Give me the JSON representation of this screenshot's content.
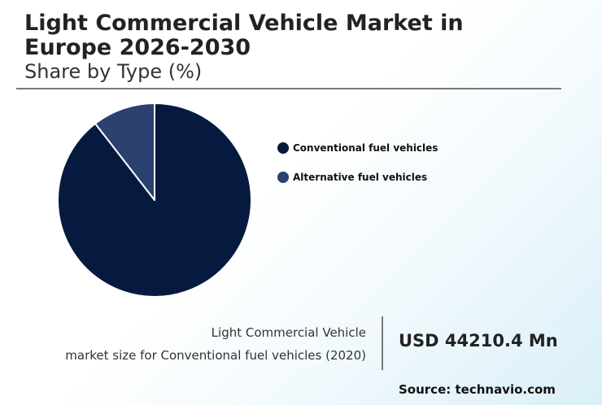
{
  "header": {
    "title_line1": "Light Commercial Vehicle Market in",
    "title_line2": "Europe 2026-2030",
    "subtitle": "Share by Type (%)"
  },
  "chart_data": {
    "type": "pie",
    "title": "Light Commercial Vehicle Market in Europe 2026-2030",
    "subtitle": "Share by Type (%)",
    "legend_position": "right",
    "categories": [
      "Conventional fuel vehicles",
      "Alternative fuel vehicles"
    ],
    "values": [
      89.5,
      10.5
    ],
    "colors": [
      "#061a40",
      "#2b4170"
    ]
  },
  "legend": {
    "items": [
      {
        "label": "Conventional fuel vehicles",
        "color": "#061a40"
      },
      {
        "label": "Alternative fuel vehicles",
        "color": "#2b4170"
      }
    ]
  },
  "metric": {
    "caption_line1": "Light Commercial Vehicle",
    "caption_line2": "market size for Conventional fuel vehicles (2020)",
    "value": "USD 44210.4 Mn"
  },
  "source": "Source: technavio.com"
}
